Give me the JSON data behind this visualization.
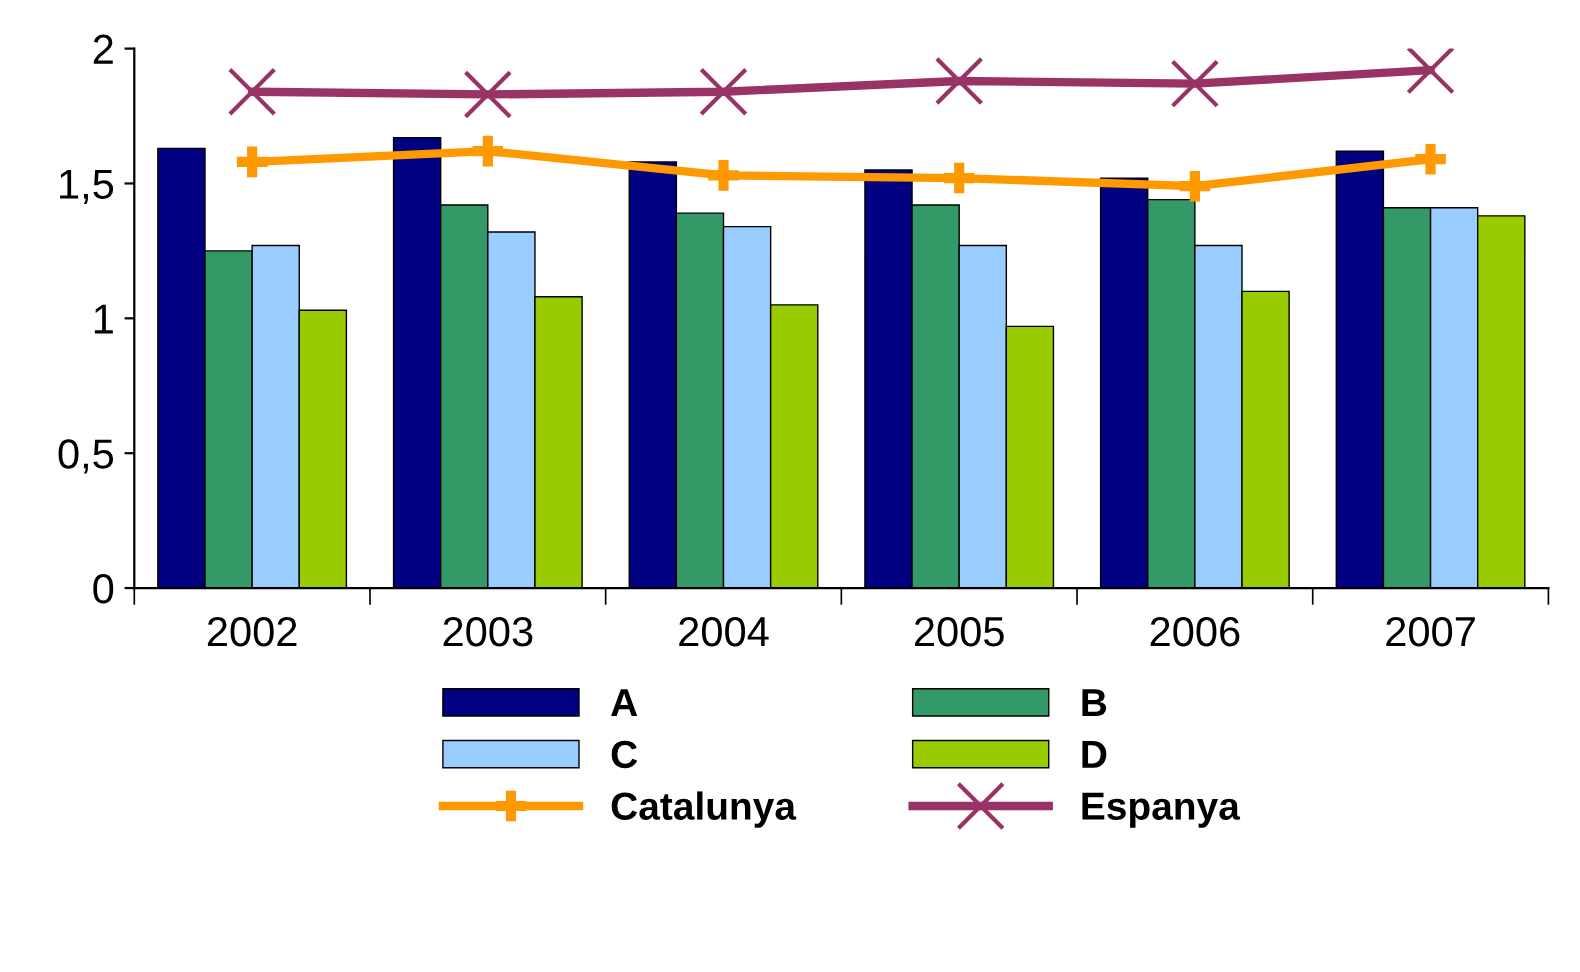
{
  "chart_data": {
    "type": "bar",
    "categories": [
      "2002",
      "2003",
      "2004",
      "2005",
      "2006",
      "2007"
    ],
    "series": [
      {
        "name": "A",
        "color": "#000080",
        "values": [
          1.63,
          1.67,
          1.58,
          1.55,
          1.52,
          1.62
        ]
      },
      {
        "name": "B",
        "color": "#339966",
        "values": [
          1.25,
          1.42,
          1.39,
          1.42,
          1.44,
          1.41
        ]
      },
      {
        "name": "C",
        "color": "#99ccff",
        "values": [
          1.27,
          1.32,
          1.34,
          1.27,
          1.27,
          1.41
        ]
      },
      {
        "name": "D",
        "color": "#99cc00",
        "values": [
          1.03,
          1.08,
          1.05,
          0.97,
          1.1,
          1.38
        ]
      },
      {
        "name": "Catalunya",
        "type": "line",
        "marker": "cross",
        "color": "#ff9900",
        "values": [
          1.58,
          1.62,
          1.53,
          1.52,
          1.49,
          1.59
        ]
      },
      {
        "name": "Espanya",
        "type": "line",
        "marker": "cross",
        "color": "#993366",
        "values": [
          1.84,
          1.83,
          1.84,
          1.88,
          1.87,
          1.92
        ]
      }
    ],
    "ylim": [
      0,
      2
    ],
    "yticks": [
      0,
      {
        "value": 0.5,
        "label": "0,5"
      },
      1,
      {
        "value": 1.5,
        "label": "1,5"
      },
      2
    ],
    "grid": false,
    "legend": "bottom"
  }
}
